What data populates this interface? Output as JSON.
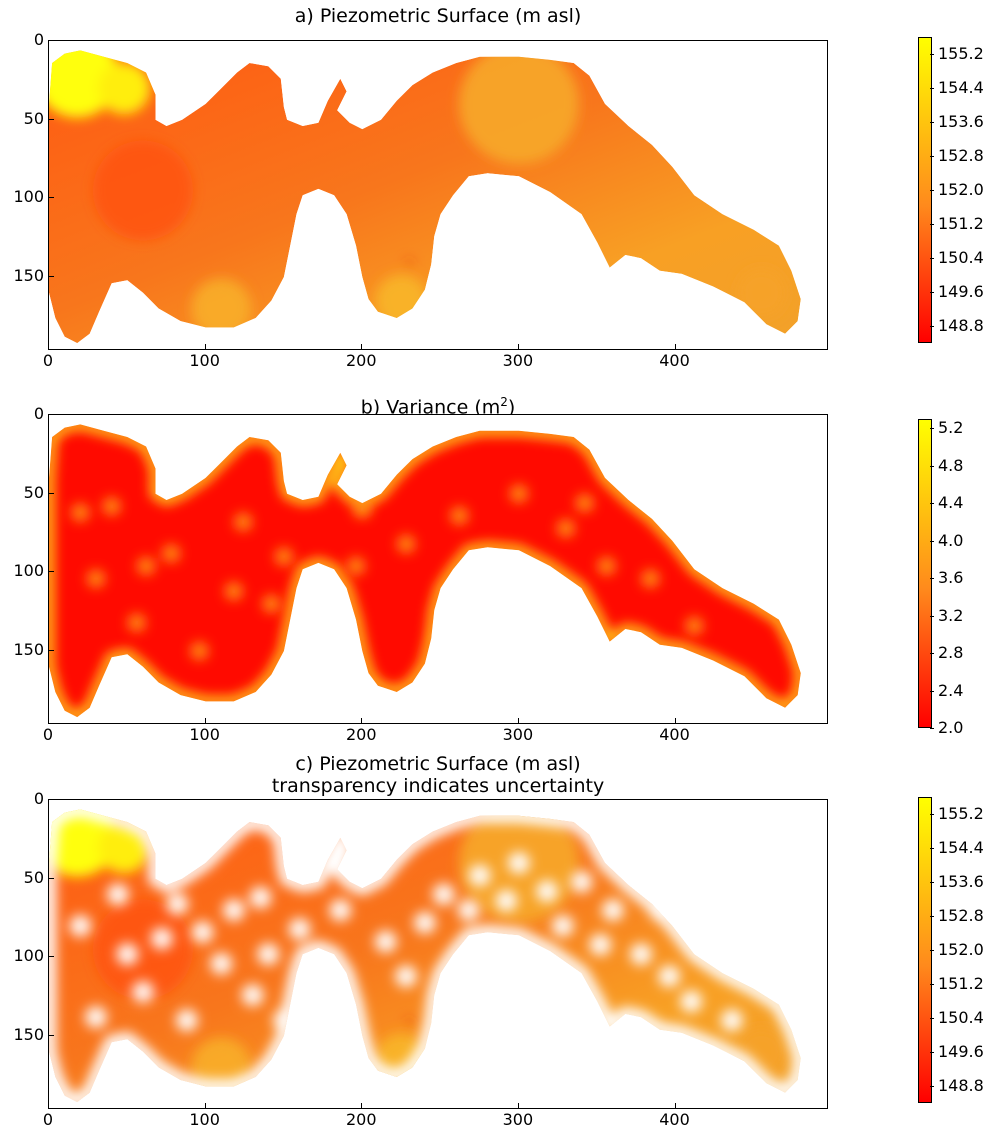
{
  "chart_data": [
    {
      "type": "heatmap",
      "title": "a) Piezometric Surface (m asl)",
      "xticks": [
        "0",
        "100",
        "200",
        "300",
        "400"
      ],
      "yticks": [
        "0",
        "50",
        "100",
        "150"
      ],
      "xlim": [
        0,
        498
      ],
      "ylim": [
        197,
        0
      ],
      "colorbar": {
        "ticks": [
          "155.2",
          "154.4",
          "153.6",
          "152.8",
          "152.0",
          "151.2",
          "150.4",
          "149.6",
          "148.8"
        ],
        "range": [
          148.4,
          155.6
        ],
        "colors": [
          "#ff0000",
          "#ffff00"
        ]
      },
      "mode": "surface"
    },
    {
      "type": "heatmap",
      "title_prefix": "b) Variance (m",
      "title_sup": "2",
      "title_suffix": ")",
      "xticks": [
        "0",
        "100",
        "200",
        "300",
        "400"
      ],
      "yticks": [
        "0",
        "50",
        "100",
        "150"
      ],
      "xlim": [
        0,
        498
      ],
      "ylim": [
        197,
        0
      ],
      "colorbar": {
        "ticks": [
          "5.2",
          "4.8",
          "4.4",
          "4.0",
          "3.6",
          "3.2",
          "2.8",
          "2.4",
          "2.0"
        ],
        "range": [
          2.0,
          5.3
        ],
        "colors": [
          "#ff0000",
          "#ffff00"
        ]
      },
      "mode": "variance"
    },
    {
      "type": "heatmap",
      "title": "c) Piezometric Surface (m asl)",
      "subtitle": "transparency indicates uncertainty",
      "xticks": [
        "0",
        "100",
        "200",
        "300",
        "400"
      ],
      "yticks": [
        "0",
        "50",
        "100",
        "150"
      ],
      "xlim": [
        0,
        498
      ],
      "ylim": [
        197,
        0
      ],
      "colorbar": {
        "ticks": [
          "155.2",
          "154.4",
          "153.6",
          "152.8",
          "152.0",
          "151.2",
          "150.4",
          "149.6",
          "148.8"
        ],
        "range": [
          148.4,
          155.6
        ],
        "colors": [
          "#ff0000",
          "#ffff00"
        ]
      },
      "mode": "transparent"
    }
  ]
}
